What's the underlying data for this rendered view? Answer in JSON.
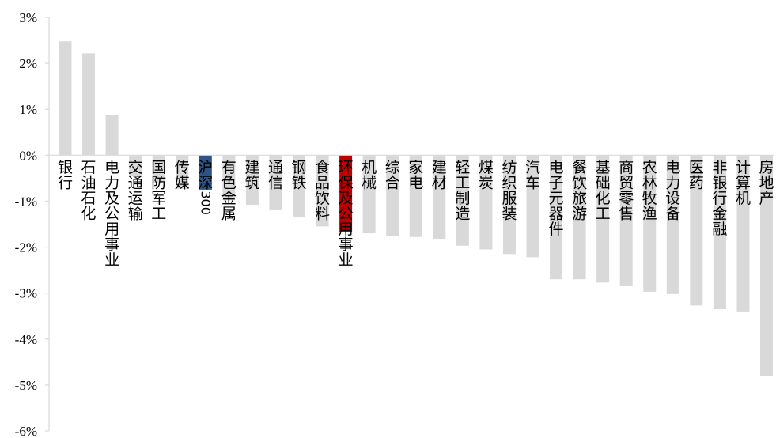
{
  "chart_data": {
    "type": "bar",
    "title": "",
    "xlabel": "",
    "ylabel": "",
    "ylim": [
      -6,
      3
    ],
    "yticks": [
      3,
      2,
      1,
      0,
      -1,
      -2,
      -3,
      -4,
      -5,
      -6
    ],
    "ytick_labels": [
      "3%",
      "2%",
      "1%",
      "0%",
      "-1%",
      "-2%",
      "-3%",
      "-4%",
      "-5%",
      "-6%"
    ],
    "grid": false,
    "legend": "none",
    "colors": {
      "default": "#d9d9d9",
      "benchmark": "#2e5487",
      "highlight": "#c00000"
    },
    "categories": [
      "银行",
      "石油石化",
      "电力及公用事业",
      "交通运输",
      "国防军工",
      "传媒",
      "沪深300",
      "有色金属",
      "建筑",
      "通信",
      "钢铁",
      "食品饮料",
      "环保及公用事业",
      "机械",
      "综合",
      "家电",
      "建材",
      "轻工制造",
      "煤炭",
      "纺织服装",
      "汽车",
      "电子元器件",
      "餐饮旅游",
      "基础化工",
      "商贸零售",
      "农林牧渔",
      "电力设备",
      "医药",
      "非银行金融",
      "计算机",
      "房地产"
    ],
    "values": [
      2.48,
      2.22,
      0.88,
      -0.45,
      -0.6,
      -0.73,
      -0.75,
      -0.98,
      -1.08,
      -1.18,
      -1.35,
      -1.55,
      -1.68,
      -1.7,
      -1.75,
      -1.78,
      -1.82,
      -1.97,
      -2.05,
      -2.15,
      -2.22,
      -2.7,
      -2.7,
      -2.77,
      -2.85,
      -2.97,
      -3.02,
      -3.27,
      -3.35,
      -3.4,
      -4.8
    ],
    "bar_roles": [
      "default",
      "default",
      "default",
      "default",
      "default",
      "default",
      "benchmark",
      "default",
      "default",
      "default",
      "default",
      "default",
      "highlight",
      "default",
      "default",
      "default",
      "default",
      "default",
      "default",
      "default",
      "default",
      "default",
      "default",
      "default",
      "default",
      "default",
      "default",
      "default",
      "default",
      "default",
      "default"
    ]
  }
}
